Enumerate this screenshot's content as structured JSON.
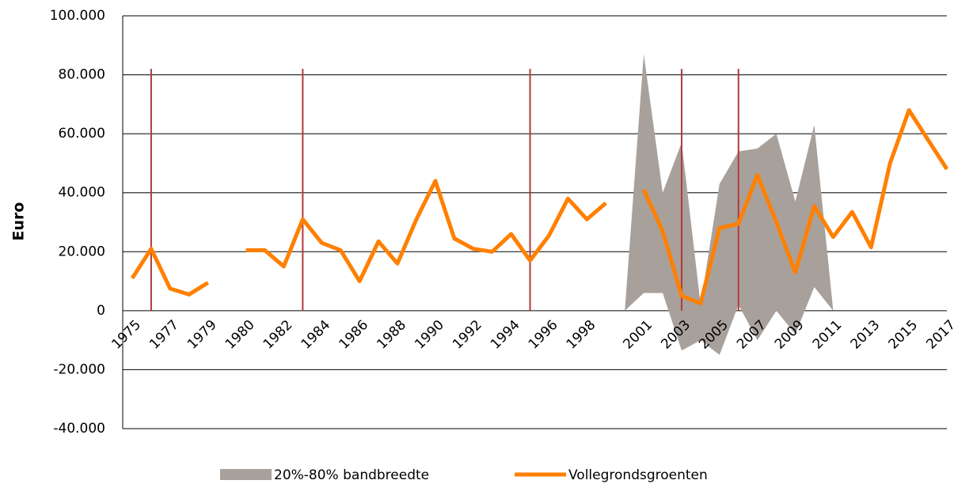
{
  "chart_data": {
    "type": "line",
    "y_label": "Euro",
    "categories": [
      "1975",
      null,
      "1977",
      null,
      "1979",
      null,
      "1980",
      null,
      "1982",
      null,
      "1984",
      null,
      "1986",
      null,
      "1988",
      null,
      "1990",
      null,
      "1992",
      null,
      "1994",
      null,
      "1996",
      null,
      "1998",
      null,
      null,
      "2001",
      null,
      "2003",
      null,
      "2005",
      null,
      "2007",
      null,
      "2009",
      null,
      "2011",
      null,
      "2013",
      null,
      "2015",
      null,
      "2017"
    ],
    "band": {
      "name": "20%-80% bandbreedte",
      "color": "#a8a09b",
      "high": [
        null,
        null,
        null,
        null,
        null,
        null,
        null,
        null,
        null,
        null,
        null,
        null,
        null,
        null,
        null,
        null,
        null,
        null,
        null,
        null,
        null,
        null,
        null,
        null,
        null,
        null,
        0,
        87000,
        40000,
        57000,
        2000,
        43000,
        54000,
        55000,
        60000,
        37000,
        63000,
        0,
        null,
        null,
        null,
        null,
        null,
        null
      ],
      "low": [
        null,
        null,
        null,
        null,
        null,
        null,
        null,
        null,
        null,
        null,
        null,
        null,
        null,
        null,
        null,
        null,
        null,
        null,
        null,
        null,
        null,
        null,
        null,
        null,
        null,
        null,
        0,
        6000,
        6000,
        -13500,
        -10000,
        -15000,
        2000,
        -10000,
        0,
        -8000,
        8000,
        0,
        null,
        null,
        null,
        null,
        null,
        null
      ]
    },
    "series": [
      {
        "name": "Vollegrondsgroenten",
        "color": "#ff8000",
        "values": [
          11000,
          21000,
          7500,
          5500,
          9500,
          null,
          20500,
          20500,
          15000,
          31000,
          23000,
          20500,
          10000,
          23500,
          16000,
          31000,
          44000,
          24500,
          21000,
          20000,
          26000,
          17000,
          25500,
          38000,
          31000,
          36500,
          null,
          41000,
          27000,
          5000,
          2500,
          28000,
          29500,
          46000,
          30000,
          13000,
          35500,
          25000,
          33500,
          21500,
          50000,
          68000,
          58000,
          48000
        ]
      }
    ],
    "vertical_lines": {
      "color": "#b03a3a",
      "indices": [
        1,
        9,
        21,
        29,
        32
      ],
      "top": 82000
    },
    "ylim": [
      -40000,
      100000
    ],
    "yticks": [
      {
        "value": -40000,
        "label": "-40.000"
      },
      {
        "value": -20000,
        "label": "-20.000"
      },
      0,
      {
        "value": 20000,
        "label": "20.000"
      },
      {
        "value": 40000,
        "label": "40.000"
      },
      {
        "value": 60000,
        "label": "60.000"
      },
      {
        "value": 80000,
        "label": "80.000"
      },
      {
        "value": 100000,
        "label": "100.000"
      }
    ],
    "grid": true
  }
}
